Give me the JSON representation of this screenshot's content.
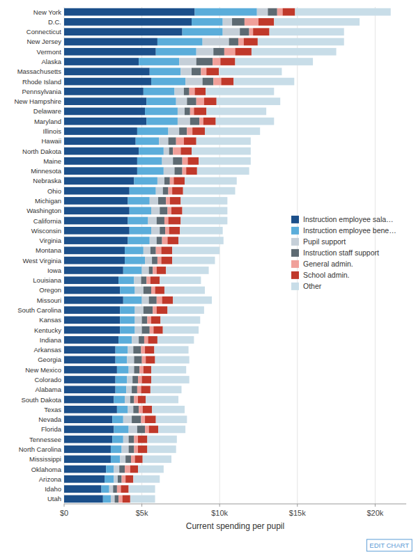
{
  "chart_data": {
    "type": "bar",
    "orientation": "horizontal",
    "stacked": true,
    "categories": [
      "New York",
      "D.C.",
      "Connecticut",
      "New Jersey",
      "Vermont",
      "Alaska",
      "Massachusetts",
      "Rhode Island",
      "Pennsylvania",
      "New Hampshire",
      "Delaware",
      "Maryland",
      "Illinois",
      "Hawaii",
      "North Dakota",
      "Maine",
      "Minnesota",
      "Nebraska",
      "Ohio",
      "Michigan",
      "Washington",
      "California",
      "Wisconsin",
      "Virginia",
      "Montana",
      "West Virginia",
      "Iowa",
      "Louisiana",
      "Oregon",
      "Missouri",
      "South Carolina",
      "Kansas",
      "Kentucky",
      "Indiana",
      "Arkansas",
      "Georgia",
      "New Mexico",
      "Colorado",
      "Alabama",
      "South Dakota",
      "Texas",
      "Nevada",
      "Florida",
      "Tennessee",
      "North Carolina",
      "Mississippi",
      "Oklahoma",
      "Arizona",
      "Idaho",
      "Utah"
    ],
    "series": [
      {
        "name": "Instruction employee sala…",
        "color": "#1b4f8a",
        "values": [
          8400,
          8200,
          7600,
          6000,
          5900,
          4800,
          5500,
          5600,
          5100,
          5300,
          5200,
          5300,
          4700,
          4600,
          4800,
          4700,
          4700,
          4500,
          4200,
          4100,
          4200,
          4100,
          4200,
          4100,
          3900,
          3900,
          3800,
          3500,
          3600,
          3800,
          3600,
          3600,
          3600,
          3500,
          3300,
          3300,
          3400,
          3300,
          3300,
          3200,
          3400,
          3100,
          3200,
          3100,
          3000,
          3000,
          2700,
          2600,
          2400,
          2500
        ]
      },
      {
        "name": "Instruction employee bene…",
        "color": "#5badda",
        "values": [
          4000,
          2000,
          2600,
          2900,
          2600,
          2600,
          2000,
          2200,
          2000,
          1900,
          2100,
          2000,
          2000,
          1500,
          1600,
          1600,
          1700,
          1500,
          1700,
          1400,
          1400,
          1300,
          1400,
          1400,
          1200,
          1300,
          1200,
          1000,
          950,
          1200,
          950,
          950,
          950,
          850,
          800,
          750,
          750,
          750,
          700,
          700,
          700,
          700,
          950,
          700,
          700,
          600,
          500,
          600,
          500,
          500
        ]
      },
      {
        "name": "Pupil support",
        "color": "#c5cfd8",
        "values": [
          700,
          600,
          1100,
          1700,
          1100,
          1100,
          700,
          1100,
          600,
          700,
          450,
          800,
          700,
          600,
          350,
          700,
          700,
          450,
          450,
          550,
          550,
          550,
          550,
          450,
          450,
          450,
          450,
          450,
          550,
          450,
          550,
          450,
          450,
          450,
          350,
          450,
          350,
          350,
          350,
          350,
          350,
          550,
          550,
          350,
          450,
          350,
          350,
          250,
          250,
          250
        ]
      },
      {
        "name": "Instruction staff support",
        "color": "#5d6a72",
        "values": [
          600,
          800,
          600,
          600,
          700,
          1050,
          600,
          700,
          350,
          600,
          350,
          600,
          500,
          500,
          250,
          600,
          500,
          350,
          350,
          500,
          500,
          500,
          350,
          350,
          350,
          350,
          250,
          350,
          500,
          500,
          600,
          350,
          500,
          350,
          500,
          500,
          350,
          350,
          350,
          250,
          350,
          600,
          500,
          350,
          350,
          350,
          350,
          250,
          250,
          250
        ]
      },
      {
        "name": "General admin.",
        "color": "#f0a09a",
        "values": [
          350,
          900,
          250,
          350,
          700,
          500,
          350,
          500,
          350,
          500,
          250,
          250,
          350,
          500,
          500,
          350,
          250,
          250,
          250,
          250,
          250,
          250,
          250,
          350,
          350,
          250,
          250,
          250,
          250,
          350,
          250,
          250,
          250,
          250,
          250,
          250,
          250,
          250,
          250,
          250,
          250,
          250,
          250,
          250,
          250,
          250,
          350,
          250,
          250,
          250
        ]
      },
      {
        "name": "School admin.",
        "color": "#c0392b",
        "values": [
          800,
          1000,
          1050,
          900,
          1050,
          950,
          800,
          800,
          700,
          800,
          800,
          800,
          800,
          800,
          700,
          700,
          700,
          700,
          700,
          700,
          700,
          800,
          700,
          700,
          700,
          700,
          600,
          600,
          600,
          700,
          700,
          600,
          600,
          600,
          600,
          600,
          500,
          600,
          600,
          500,
          600,
          700,
          600,
          600,
          600,
          500,
          500,
          500,
          500,
          500
        ]
      },
      {
        "name": "Other",
        "color": "#c8dde8",
        "values": [
          6150,
          5500,
          4800,
          5550,
          5450,
          5000,
          4050,
          3900,
          4400,
          4100,
          3850,
          3750,
          3550,
          3500,
          3800,
          3350,
          3350,
          3350,
          3350,
          3000,
          2900,
          3000,
          2750,
          2900,
          3050,
          2750,
          2750,
          2650,
          2600,
          2500,
          2350,
          2550,
          2300,
          2350,
          2200,
          2200,
          2250,
          2450,
          2000,
          2100,
          2100,
          2000,
          1750,
          1900,
          1850,
          1850,
          1650,
          1700,
          1700,
          1600
        ]
      }
    ],
    "xlim": [
      0,
      22000
    ],
    "xticks": [
      {
        "value": 0,
        "label": "$0"
      },
      {
        "value": 5000,
        "label": "$5k"
      },
      {
        "value": 10000,
        "label": "$10k"
      },
      {
        "value": 15000,
        "label": "$15k"
      },
      {
        "value": 20000,
        "label": "$20k"
      }
    ],
    "xlabel": "Current spending per pupil",
    "grid": true,
    "legend": "right",
    "annotations": [
      "EDIT CHART"
    ]
  }
}
